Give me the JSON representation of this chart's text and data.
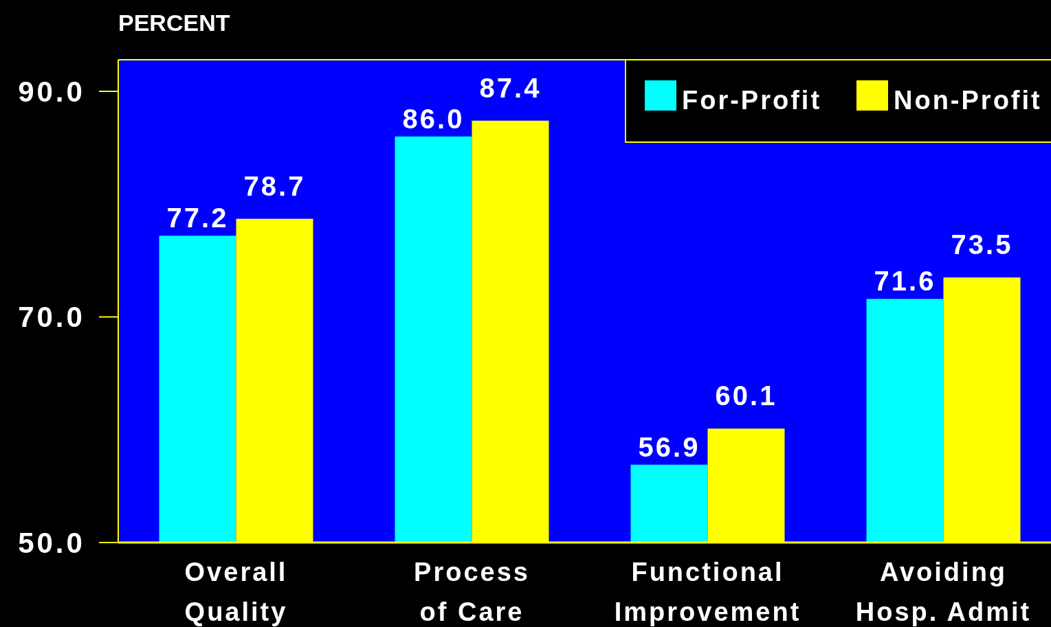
{
  "chart_data": {
    "type": "bar",
    "ylabel": "PERCENT",
    "categories": [
      "Overall\nQuality",
      "Process\nof Care",
      "Functional\nImprovement",
      "Avoiding\nHosp. Admit"
    ],
    "series": [
      {
        "name": "For-Profit",
        "color": "#00ffff",
        "values": [
          77.2,
          86.0,
          56.9,
          71.6
        ],
        "value_labels": [
          "77.2",
          "86.0",
          "56.9",
          "71.6"
        ]
      },
      {
        "name": "Non-Profit",
        "color": "#ffff00",
        "values": [
          78.7,
          87.4,
          60.1,
          73.5
        ],
        "value_labels": [
          "78.7",
          "87.4",
          "60.1",
          "73.5"
        ]
      }
    ],
    "ylim": [
      50,
      92.8
    ],
    "yticks": [
      {
        "value": 50,
        "label": "50.0"
      },
      {
        "value": 70,
        "label": "70.0"
      },
      {
        "value": 90,
        "label": "90.0"
      }
    ],
    "legend": "top right",
    "grid": false
  }
}
